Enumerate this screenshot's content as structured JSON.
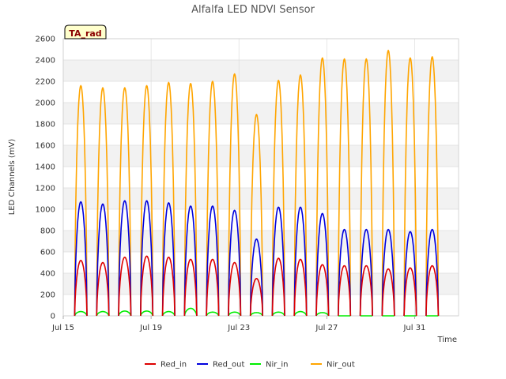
{
  "chart_data": {
    "type": "line",
    "title": "Alfalfa LED NDVI Sensor",
    "xlabel": "Time",
    "ylabel": "LED Channels (mV)",
    "annotation": "TA_rad",
    "x_unit": "day of July",
    "xlim": [
      15,
      33
    ],
    "ylim": [
      0,
      2600
    ],
    "yticks": [
      0,
      200,
      400,
      600,
      800,
      1000,
      1200,
      1400,
      1600,
      1800,
      2000,
      2200,
      2400,
      2600
    ],
    "xticks": [
      {
        "value": 15,
        "label": "Jul 15"
      },
      {
        "value": 19,
        "label": "Jul 19"
      },
      {
        "value": 23,
        "label": "Jul 23"
      },
      {
        "value": 27,
        "label": "Jul 27"
      },
      {
        "value": 31,
        "label": "Jul 31"
      }
    ],
    "legend_position": "bottom",
    "daily_peak_days": [
      15.8,
      16.8,
      17.8,
      18.8,
      19.8,
      20.8,
      21.8,
      22.8,
      23.8,
      24.8,
      25.8,
      26.8,
      27.8,
      28.8,
      29.8,
      30.8,
      31.8
    ],
    "series": [
      {
        "name": "Red_in",
        "color": "#dd0000",
        "peaks": [
          520,
          500,
          550,
          560,
          550,
          530,
          530,
          500,
          350,
          540,
          530,
          480,
          470,
          470,
          440,
          450,
          470
        ]
      },
      {
        "name": "Red_out",
        "color": "#0000dd",
        "peaks": [
          1070,
          1050,
          1080,
          1080,
          1060,
          1030,
          1030,
          990,
          720,
          1020,
          1020,
          960,
          810,
          810,
          810,
          790,
          810
        ]
      },
      {
        "name": "Nir_in",
        "color": "#00ee00",
        "peaks": [
          40,
          40,
          45,
          45,
          40,
          70,
          35,
          35,
          30,
          35,
          40,
          30,
          0,
          0,
          0,
          0,
          0
        ]
      },
      {
        "name": "Nir_out",
        "color": "#ffa500",
        "peaks": [
          2160,
          2140,
          2140,
          2160,
          2190,
          2180,
          2200,
          2270,
          1890,
          2210,
          2260,
          2420,
          2410,
          2410,
          2490,
          2420,
          2430
        ]
      }
    ]
  }
}
